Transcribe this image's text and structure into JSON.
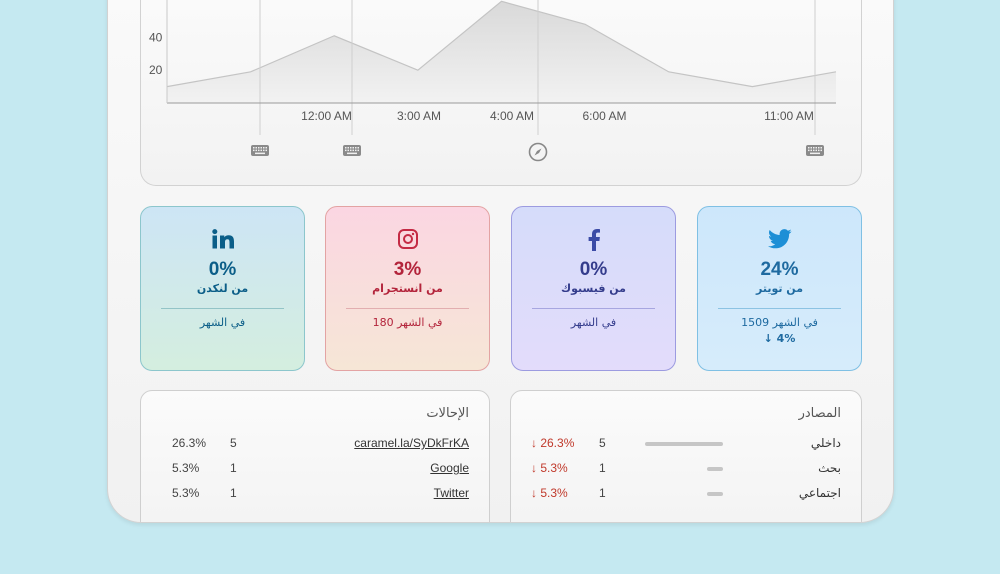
{
  "chart_data": {
    "type": "area",
    "title": "",
    "xlabel": "",
    "ylabel": "",
    "y_ticks": [
      "20",
      "40"
    ],
    "x_tick_labels": [
      "12:00 AM",
      "3:00 AM",
      "4:00 AM",
      "6:00 AM",
      "11:00 AM"
    ],
    "ylim": [
      0,
      75
    ],
    "points": [
      {
        "x": 0,
        "y": 10
      },
      {
        "x": 1,
        "y": 19
      },
      {
        "x": 2,
        "y": 41
      },
      {
        "x": 3,
        "y": 20
      },
      {
        "x": 4,
        "y": 62
      },
      {
        "x": 5,
        "y": 48
      },
      {
        "x": 6,
        "y": 19
      },
      {
        "x": 7,
        "y": 10
      },
      {
        "x": 8,
        "y": 19
      }
    ],
    "grid": false
  },
  "markers": [
    {
      "icon": "keyboard-icon"
    },
    {
      "icon": "keyboard-icon"
    },
    {
      "icon": "compass-icon"
    },
    {
      "icon": "keyboard-icon"
    }
  ],
  "stats": {
    "twitter": {
      "icon": "twitter-icon",
      "value": "24%",
      "label": "من تويتر",
      "month": "1509 في الشهر",
      "trend": "↓ 4%",
      "color": "#1e6aa0"
    },
    "facebook": {
      "icon": "facebook-icon",
      "value": "0%",
      "label": "من فيسبوك",
      "month": "في الشهر",
      "color": "#343c8c"
    },
    "instagram": {
      "icon": "instagram-icon",
      "value": "3%",
      "label": "من انستجرام",
      "month": "180 في الشهر",
      "color": "#b3243b"
    },
    "linkedin": {
      "icon": "linkedin-icon",
      "value": "0%",
      "label": "من لنكدن",
      "month": "في الشهر",
      "color": "#0b5e88"
    }
  },
  "sources": {
    "title": "المصادر",
    "rows": [
      {
        "name": "داخلي",
        "count": "5",
        "percent": "↓ 26.3%",
        "share": 0.263
      },
      {
        "name": "بحث",
        "count": "1",
        "percent": "↓ 5.3%",
        "share": 0.053
      },
      {
        "name": "اجتماعي",
        "count": "1",
        "percent": "↓ 5.3%",
        "share": 0.053
      }
    ]
  },
  "referrals": {
    "title": "الإحالات",
    "rows": [
      {
        "link": "caramel.la/SyDkFrKA",
        "count": "5",
        "percent": "26.3%"
      },
      {
        "link": "Google",
        "count": "1",
        "percent": "5.3%"
      },
      {
        "link": "Twitter",
        "count": "1",
        "percent": "5.3%"
      }
    ]
  }
}
